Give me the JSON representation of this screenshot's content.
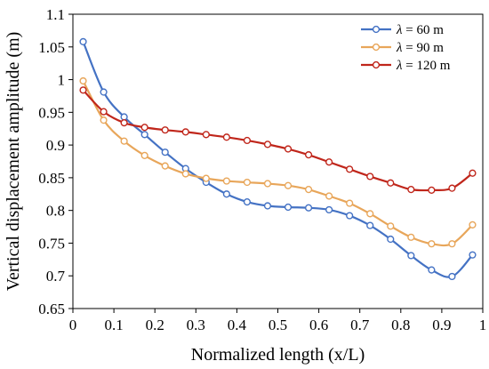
{
  "chart_data": {
    "type": "line",
    "title": "",
    "xlabel": "Normalized length (x/L)",
    "ylabel": "Vertical displacement amplitude (m)",
    "xlim": [
      0,
      1
    ],
    "ylim": [
      0.65,
      1.1
    ],
    "xticks": [
      "0",
      "0.1",
      "0.2",
      "0.3",
      "0.4",
      "0.5",
      "0.6",
      "0.7",
      "0.8",
      "0.9",
      "1"
    ],
    "yticks": [
      "0.65",
      "0.7",
      "0.75",
      "0.8",
      "0.85",
      "0.9",
      "0.95",
      "1",
      "1.05",
      "1.1"
    ],
    "grid": false,
    "legend_position": "top-right",
    "x": [
      0.025,
      0.075,
      0.125,
      0.175,
      0.225,
      0.275,
      0.325,
      0.375,
      0.425,
      0.475,
      0.525,
      0.575,
      0.625,
      0.675,
      0.725,
      0.775,
      0.825,
      0.875,
      0.925,
      0.975
    ],
    "series": [
      {
        "name": "λ = 60 m",
        "legend_symbol": "λ",
        "legend_rest": " = 60 m",
        "color": "#4472C4",
        "values": [
          1.058,
          0.981,
          0.943,
          0.916,
          0.889,
          0.864,
          0.843,
          0.825,
          0.813,
          0.807,
          0.805,
          0.804,
          0.801,
          0.792,
          0.777,
          0.756,
          0.731,
          0.709,
          0.699,
          0.732
        ]
      },
      {
        "name": "λ = 90 m",
        "legend_symbol": "λ",
        "legend_rest": " = 90 m",
        "color": "#E8A65A",
        "values": [
          0.998,
          0.938,
          0.906,
          0.884,
          0.868,
          0.856,
          0.849,
          0.845,
          0.843,
          0.841,
          0.838,
          0.832,
          0.822,
          0.811,
          0.795,
          0.776,
          0.759,
          0.749,
          0.749,
          0.778
        ]
      },
      {
        "name": "λ = 120 m",
        "legend_symbol": "λ",
        "legend_rest": " = 120 m",
        "color": "#C0261B",
        "values": [
          0.984,
          0.951,
          0.934,
          0.927,
          0.923,
          0.92,
          0.916,
          0.912,
          0.907,
          0.901,
          0.894,
          0.885,
          0.874,
          0.863,
          0.852,
          0.842,
          0.832,
          0.831,
          0.834,
          0.857
        ]
      }
    ]
  }
}
